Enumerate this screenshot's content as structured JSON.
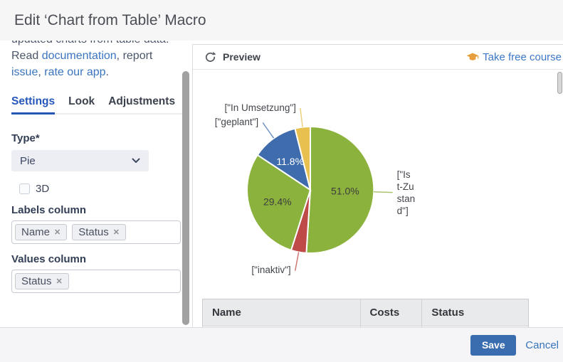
{
  "window": {
    "title": "Edit ‘Chart from Table’ Macro"
  },
  "sidebar": {
    "intro_lines": [
      {
        "parts": [
          {
            "text": "updated charts from table data.",
            "link": false
          }
        ]
      },
      {
        "parts": [
          {
            "text": "Read ",
            "link": false
          },
          {
            "text": "documentation",
            "link": true
          },
          {
            "text": ", report",
            "link": false
          }
        ]
      },
      {
        "parts": [
          {
            "text": "issue",
            "link": true
          },
          {
            "text": ", ",
            "link": false
          },
          {
            "text": "rate our app",
            "link": true
          },
          {
            "text": ".",
            "link": false
          }
        ]
      }
    ],
    "tabs": [
      {
        "label": "Settings",
        "active": true
      },
      {
        "label": "Look",
        "active": false
      },
      {
        "label": "Adjustments",
        "active": false
      }
    ],
    "form": {
      "type_label": "Type*",
      "type_value": "Pie",
      "threed_label": "3D",
      "threed_checked": false,
      "labels_column_label": "Labels column",
      "labels_column_tags": [
        "Name",
        "Status"
      ],
      "values_column_label": "Values column",
      "values_column_tags": [
        "Status"
      ],
      "tag_remove_glyph": "✕"
    }
  },
  "preview": {
    "header_title": "Preview",
    "course_link_label": "Take free course"
  },
  "chart_data": {
    "type": "pie",
    "title": "",
    "legend": "none",
    "start_angle_deg": 0,
    "clockwise": true,
    "slices": [
      {
        "label": "[\"Ist-Zustand\"]",
        "value": 51.0,
        "pct_label": "51.0%",
        "color": "#8CB23E",
        "pct_text_color": "#3d3d3d",
        "callout": true
      },
      {
        "label": "[\"inaktiv\"]",
        "value": 3.9,
        "pct_label": "",
        "color": "#BE4B48",
        "pct_text_color": "",
        "callout": true
      },
      {
        "label": "",
        "value": 29.4,
        "pct_label": "29.4%",
        "color": "#8CB23E",
        "pct_text_color": "#3d3d3d",
        "callout": false
      },
      {
        "label": "[\"geplant\"]",
        "value": 11.8,
        "pct_label": "11.8%",
        "color": "#3F6CAC",
        "pct_text_color": "#ffffff",
        "callout": true
      },
      {
        "label": "[\"In Umsetzung\"]",
        "value": 3.9,
        "pct_label": "",
        "color": "#E7C04F",
        "pct_text_color": "",
        "callout": true
      }
    ],
    "notes": "Preview pie of Status values; small slices have callout labels only"
  },
  "table": {
    "headers": [
      "Name",
      "Costs",
      "Status"
    ]
  },
  "footer": {
    "save_label": "Save",
    "cancel_label": "Cancel"
  },
  "colors": {
    "link_blue": "#3B74BF",
    "tab_active_blue": "#2456B3",
    "save_button_blue": "#3A6DB0",
    "course_icon_orange": "#E79E3C",
    "titlebar_bg": "#F6F6F7",
    "footer_bg": "#F5F5F7"
  }
}
